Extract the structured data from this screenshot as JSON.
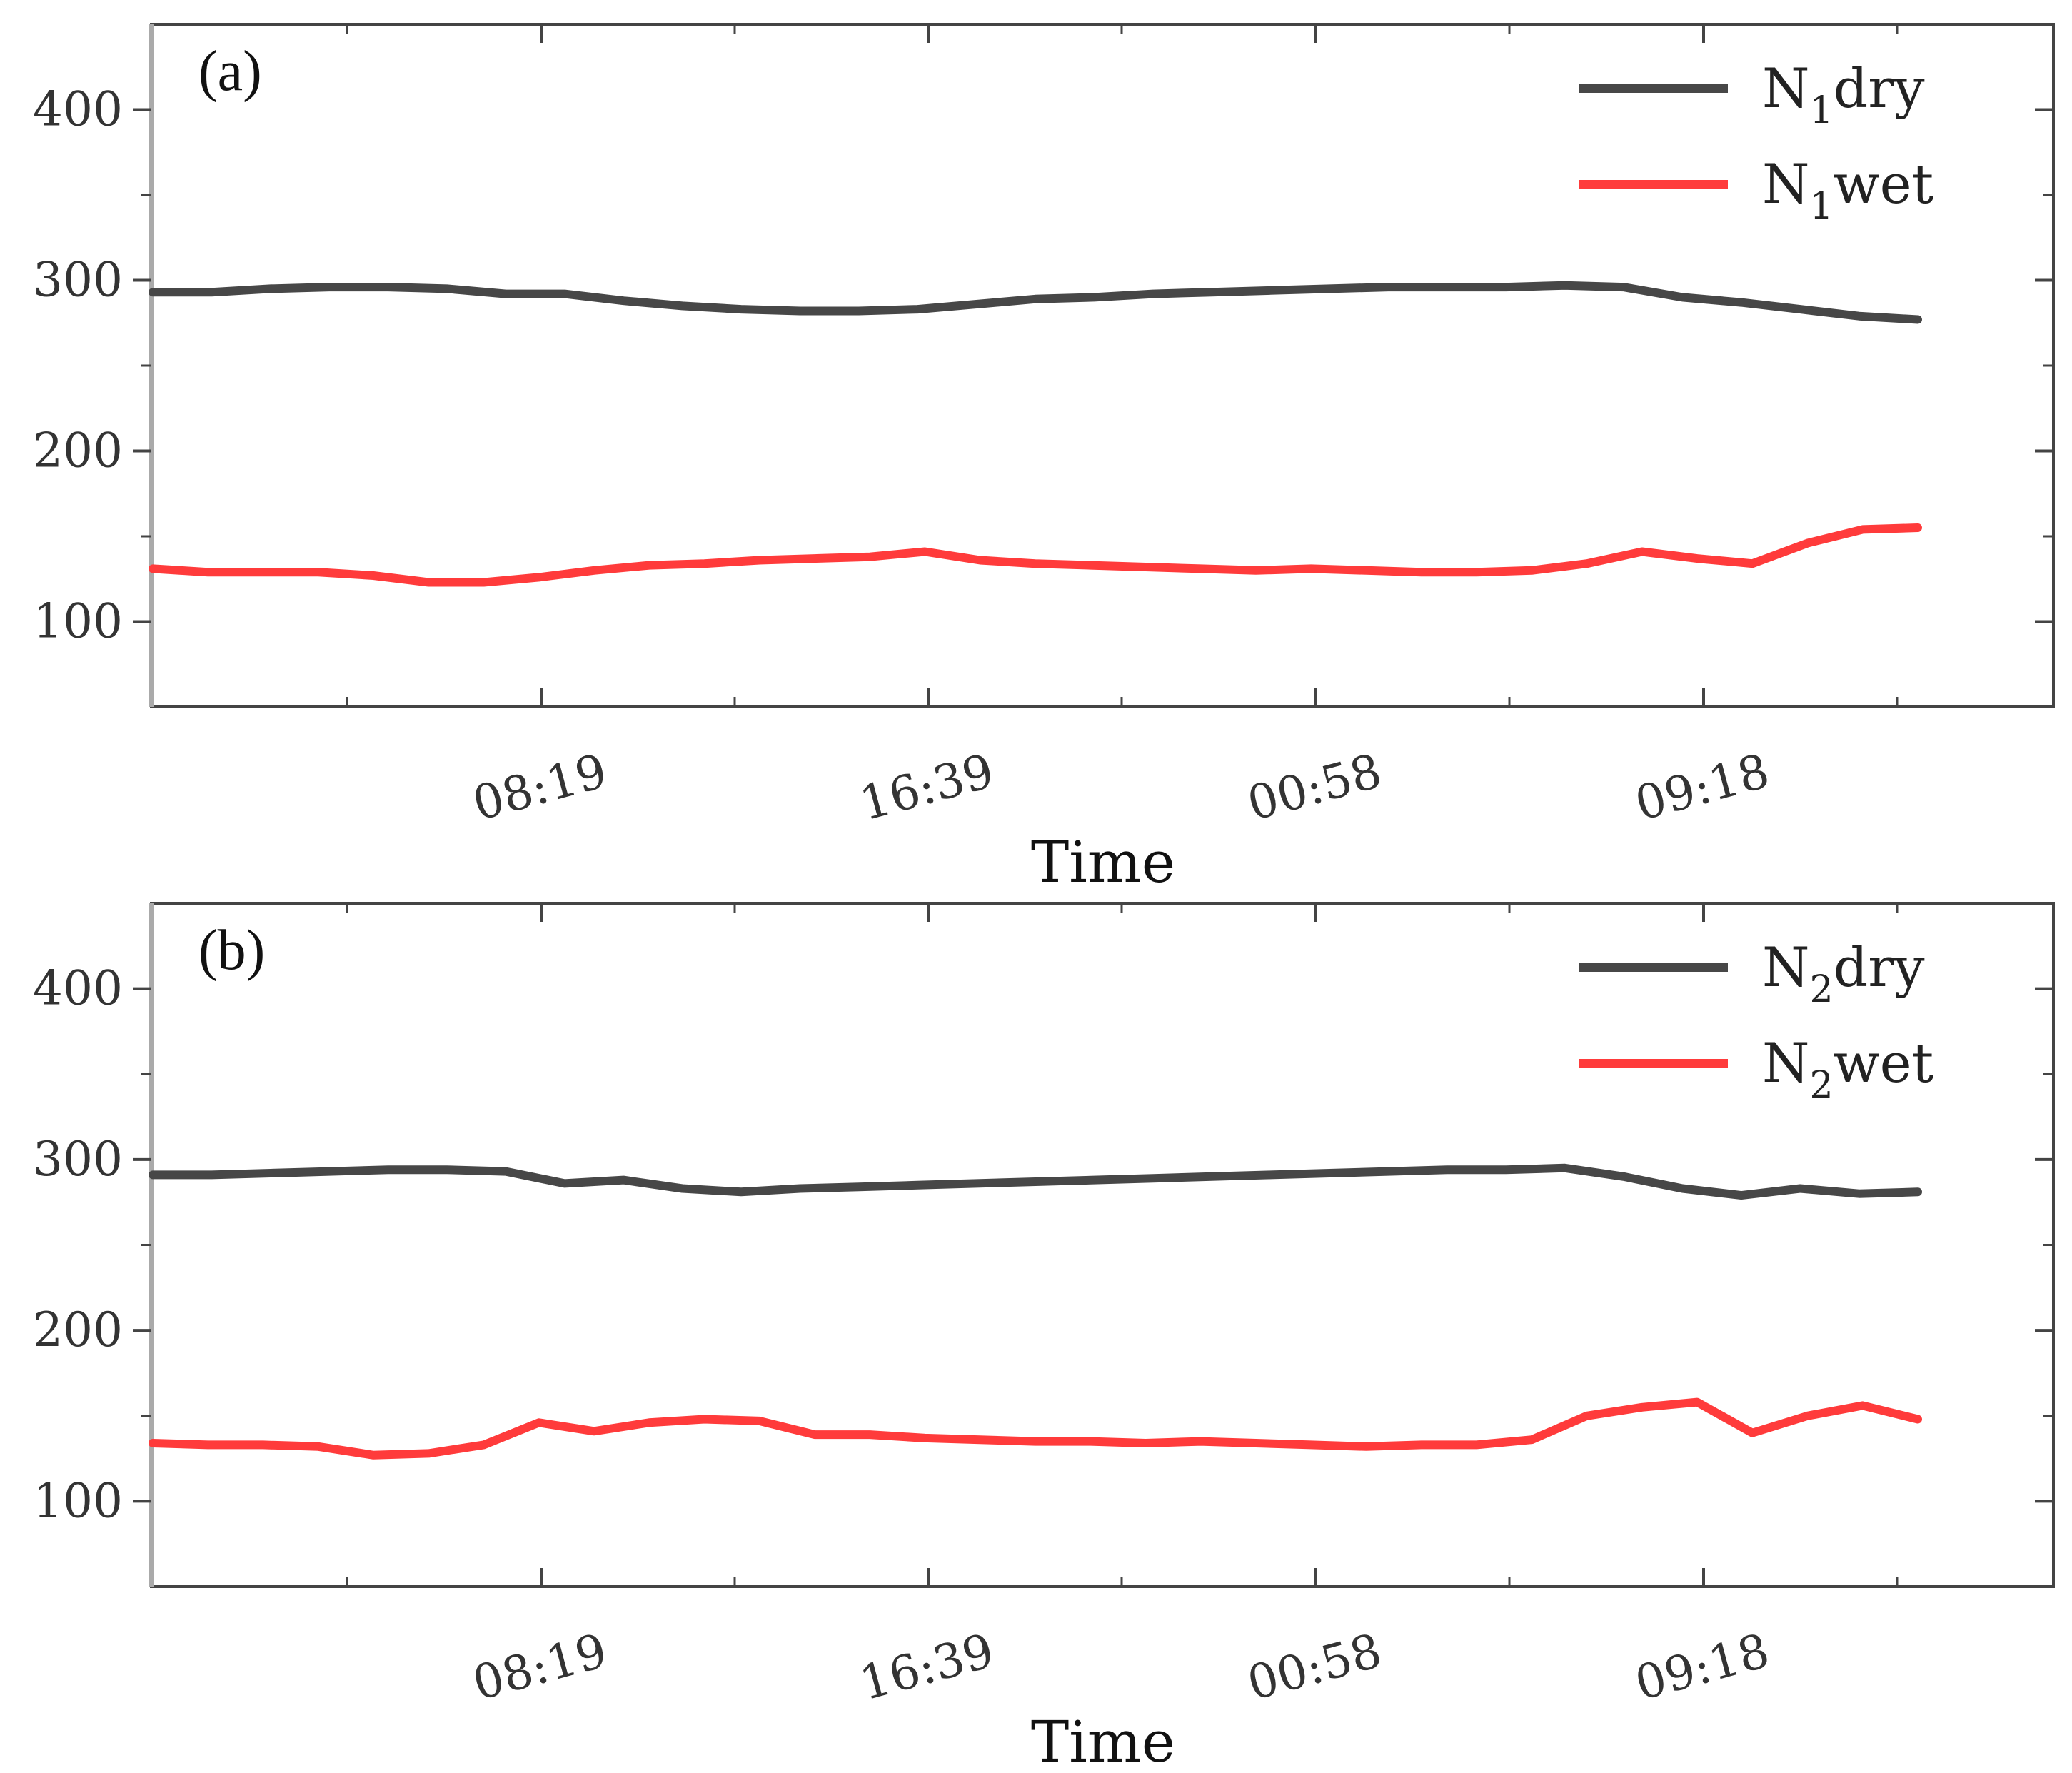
{
  "chart_data": [
    {
      "type": "line",
      "panel_label": "(a)",
      "xlabel": "Time",
      "ylabel": "",
      "x_tick_labels": [
        "08:19",
        "16:39",
        "00:58",
        "09:18"
      ],
      "y_ticks": [
        100,
        200,
        300,
        400
      ],
      "ylim": [
        50,
        450
      ],
      "legend_position": "top-right",
      "series": [
        {
          "name": "dry",
          "legend_main": "N",
          "legend_sub": "1",
          "legend_suffix": "dry",
          "color": "#474747",
          "points": [
            [
              0,
              293
            ],
            [
              1,
              293
            ],
            [
              2,
              295
            ],
            [
              3,
              296
            ],
            [
              4,
              296
            ],
            [
              5,
              295
            ],
            [
              6,
              292
            ],
            [
              7,
              292
            ],
            [
              8,
              288
            ],
            [
              9,
              285
            ],
            [
              10,
              283
            ],
            [
              11,
              282
            ],
            [
              12,
              282
            ],
            [
              13,
              283
            ],
            [
              14,
              286
            ],
            [
              15,
              289
            ],
            [
              16,
              290
            ],
            [
              17,
              292
            ],
            [
              18,
              293
            ],
            [
              19,
              294
            ],
            [
              20,
              295
            ],
            [
              21,
              296
            ],
            [
              22,
              296
            ],
            [
              23,
              296
            ],
            [
              24,
              297
            ],
            [
              25,
              296
            ],
            [
              26,
              290
            ],
            [
              27,
              287
            ],
            [
              28,
              283
            ],
            [
              29,
              279
            ],
            [
              30,
              277
            ]
          ]
        },
        {
          "name": "wet",
          "legend_main": "N",
          "legend_sub": "1",
          "legend_suffix": "wet",
          "color": "#ff3b3b",
          "points": [
            [
              0,
              131
            ],
            [
              1,
              129
            ],
            [
              2,
              129
            ],
            [
              3,
              129
            ],
            [
              4,
              127
            ],
            [
              5,
              123
            ],
            [
              6,
              123
            ],
            [
              7,
              126
            ],
            [
              8,
              130
            ],
            [
              9,
              133
            ],
            [
              10,
              134
            ],
            [
              11,
              136
            ],
            [
              12,
              137
            ],
            [
              13,
              138
            ],
            [
              14,
              141
            ],
            [
              15,
              136
            ],
            [
              16,
              134
            ],
            [
              17,
              133
            ],
            [
              18,
              132
            ],
            [
              19,
              131
            ],
            [
              20,
              130
            ],
            [
              21,
              131
            ],
            [
              22,
              130
            ],
            [
              23,
              129
            ],
            [
              24,
              129
            ],
            [
              25,
              130
            ],
            [
              26,
              134
            ],
            [
              27,
              141
            ],
            [
              28,
              137
            ],
            [
              29,
              134
            ],
            [
              30,
              146
            ],
            [
              31,
              154
            ],
            [
              32,
              155
            ]
          ]
        }
      ]
    },
    {
      "type": "line",
      "panel_label": "(b)",
      "xlabel": "Time",
      "ylabel": "",
      "x_tick_labels": [
        "08:19",
        "16:39",
        "00:58",
        "09:18"
      ],
      "y_ticks": [
        100,
        200,
        300,
        400
      ],
      "ylim": [
        50,
        450
      ],
      "legend_position": "top-right",
      "series": [
        {
          "name": "dry",
          "legend_main": "N",
          "legend_sub": "2",
          "legend_suffix": "dry",
          "color": "#474747",
          "points": [
            [
              0,
              291
            ],
            [
              1,
              291
            ],
            [
              2,
              292
            ],
            [
              3,
              293
            ],
            [
              4,
              294
            ],
            [
              5,
              294
            ],
            [
              6,
              293
            ],
            [
              7,
              286
            ],
            [
              8,
              288
            ],
            [
              9,
              283
            ],
            [
              10,
              281
            ],
            [
              11,
              283
            ],
            [
              12,
              284
            ],
            [
              13,
              285
            ],
            [
              14,
              286
            ],
            [
              15,
              287
            ],
            [
              16,
              288
            ],
            [
              17,
              289
            ],
            [
              18,
              290
            ],
            [
              19,
              291
            ],
            [
              20,
              292
            ],
            [
              21,
              293
            ],
            [
              22,
              294
            ],
            [
              23,
              294
            ],
            [
              24,
              295
            ],
            [
              25,
              290
            ],
            [
              26,
              283
            ],
            [
              27,
              279
            ],
            [
              28,
              283
            ],
            [
              29,
              280
            ],
            [
              30,
              281
            ]
          ]
        },
        {
          "name": "wet",
          "legend_main": "N",
          "legend_sub": "2",
          "legend_suffix": "wet",
          "color": "#ff3b3b",
          "points": [
            [
              0,
              134
            ],
            [
              1,
              133
            ],
            [
              2,
              133
            ],
            [
              3,
              132
            ],
            [
              4,
              127
            ],
            [
              5,
              128
            ],
            [
              6,
              133
            ],
            [
              7,
              146
            ],
            [
              8,
              141
            ],
            [
              9,
              146
            ],
            [
              10,
              148
            ],
            [
              11,
              147
            ],
            [
              12,
              139
            ],
            [
              13,
              139
            ],
            [
              14,
              137
            ],
            [
              15,
              136
            ],
            [
              16,
              135
            ],
            [
              17,
              135
            ],
            [
              18,
              134
            ],
            [
              19,
              135
            ],
            [
              20,
              134
            ],
            [
              21,
              133
            ],
            [
              22,
              132
            ],
            [
              23,
              133
            ],
            [
              24,
              133
            ],
            [
              25,
              136
            ],
            [
              26,
              150
            ],
            [
              27,
              155
            ],
            [
              28,
              158
            ],
            [
              29,
              140
            ],
            [
              30,
              150
            ],
            [
              31,
              156
            ],
            [
              32,
              148
            ]
          ]
        }
      ]
    }
  ]
}
